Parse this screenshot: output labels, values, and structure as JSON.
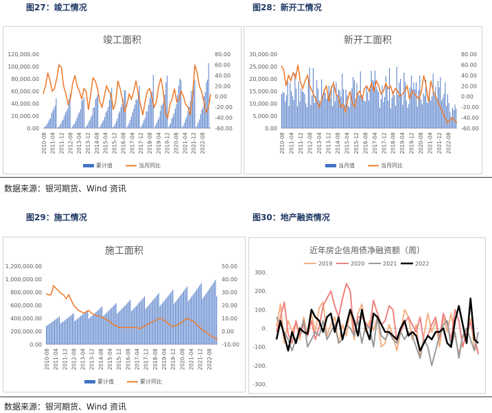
{
  "figures": {
    "f27": {
      "label": "图27：竣工情况"
    },
    "f28": {
      "label": "图28：新开工情况"
    },
    "f29": {
      "label": "图29：施工情况"
    },
    "f30": {
      "label": "图30：地产融资情况"
    }
  },
  "source_text": "数据来源：银河期货、Wind 资讯",
  "colors": {
    "bar": "#4472c4",
    "line": "#ed7d31",
    "title_blue": "#1f3864"
  },
  "chart_data": [
    {
      "id": "completion",
      "type": "bar+line",
      "title": "竣工面积",
      "x_ticks": [
        "2010-08",
        "2011-04",
        "2011-12",
        "2012-08",
        "2013-04",
        "2013-12",
        "2014-08",
        "2015-04",
        "2015-12",
        "2016-08",
        "2017-04",
        "2017-12",
        "2018-08",
        "2019-04",
        "2019-12",
        "2020-08",
        "2021-04",
        "2021-12",
        "2022-08"
      ],
      "y_left_ticks": [
        "0.00",
        "20,000.00",
        "40,000.00",
        "60,000.00",
        "80,000.00",
        "100,000.00",
        "120,000.00"
      ],
      "y_right_ticks": [
        "80.00",
        "60.00",
        "40.00",
        "20.00",
        "0.00",
        "-20.00",
        "-40.00",
        "-60.00"
      ],
      "ylim_left": [
        0,
        120000
      ],
      "ylim_right": [
        -60,
        80
      ],
      "right_tick_values": [
        80,
        60,
        40,
        20,
        0,
        -20,
        -40,
        -60
      ],
      "legend": [
        "累计值",
        "当月同比"
      ],
      "bar_pattern": "cumulative",
      "bar_annual_peak_start": 42000,
      "bar_annual_peak_end": 98000,
      "line_values": [
        5,
        20,
        45,
        30,
        10,
        15,
        35,
        60,
        55,
        20,
        5,
        -15,
        -5,
        25,
        40,
        20,
        10,
        -5,
        15,
        10,
        -25,
        5,
        35,
        30,
        15,
        -10,
        -20,
        0,
        20,
        10,
        5,
        -25,
        -10,
        30,
        15,
        -5,
        -30,
        -15,
        5,
        -5,
        10,
        30,
        5,
        -15,
        -35,
        -10,
        10,
        15,
        0,
        -20,
        -10,
        20,
        35,
        10,
        -30,
        -40,
        -15,
        -5,
        15,
        -10,
        -5,
        10,
        0,
        -15,
        -20,
        -35,
        0,
        60,
        45,
        20,
        10,
        -10,
        -30,
        -20,
        5
      ]
    },
    {
      "id": "new-starts",
      "type": "bar+line",
      "title": "新开工面积",
      "x_ticks": [
        "2010-08",
        "2011-04",
        "2011-12",
        "2012-08",
        "2013-04",
        "2013-12",
        "2014-08",
        "2015-04",
        "2015-12",
        "2016-08",
        "2017-04",
        "2017-12",
        "2018-08",
        "2019-04",
        "2019-12",
        "2020-08",
        "2021-04",
        "2021-12",
        "2022-08"
      ],
      "y_left_ticks": [
        "0.00",
        "5,000.00",
        "10,000.00",
        "15,000.00",
        "20,000.00",
        "25,000.00",
        "30,000.00"
      ],
      "y_right_ticks": [
        "80.00",
        "60.00",
        "40.00",
        "20.00",
        "0.00",
        "-20.00",
        "-40.00",
        "-60.00"
      ],
      "ylim_left": [
        0,
        30000
      ],
      "ylim_right": [
        -60,
        80
      ],
      "right_tick_values": [
        80,
        60,
        40,
        20,
        0,
        -20,
        -40,
        -60
      ],
      "legend": [
        "当月值",
        "当月同比"
      ],
      "bar_pattern": "monthly",
      "line_values": [
        58,
        50,
        20,
        40,
        30,
        45,
        35,
        60,
        28,
        15,
        30,
        40,
        20,
        10,
        0,
        -10,
        -20,
        -5,
        10,
        20,
        -10,
        15,
        25,
        5,
        0,
        -20,
        -15,
        -30,
        -5,
        10,
        -15,
        -20,
        5,
        10,
        -5,
        15,
        20,
        10,
        25,
        10,
        30,
        20,
        5,
        10,
        25,
        15,
        20,
        5,
        15,
        10,
        0,
        5,
        10,
        20,
        -5,
        10,
        5,
        0,
        -5,
        10,
        40,
        20,
        -10,
        30,
        10,
        0,
        -10,
        -20,
        -30,
        -40,
        -50,
        -45,
        -40,
        -45,
        -50
      ]
    },
    {
      "id": "under-construction",
      "type": "bar+line",
      "title": "施工面积",
      "x_ticks": [
        "2010-08",
        "2011-04",
        "2011-12",
        "2012-08",
        "2013-04",
        "2013-12",
        "2014-08",
        "2015-04",
        "2015-12",
        "2016-08",
        "2017-04",
        "2017-12",
        "2018-08",
        "2019-04",
        "2019-12",
        "2020-08",
        "2021-04",
        "2021-12",
        "2022-08"
      ],
      "y_left_ticks": [
        "0.00",
        "200,000.00",
        "400,000.00",
        "600,000.00",
        "800,000.00",
        "1,000,000.00",
        "1,200,000.00"
      ],
      "y_right_ticks": [
        "50.00",
        "40.00",
        "30.00",
        "20.00",
        "10.00",
        "0.00",
        "-10.00"
      ],
      "ylim_left": [
        0,
        1200000
      ],
      "ylim_right": [
        -10,
        50
      ],
      "right_tick_values": [
        50,
        40,
        30,
        20,
        10,
        0,
        -10
      ],
      "legend": [
        "累计值",
        "累计同比"
      ],
      "bar_pattern": "cumulative-growing",
      "bar_start_max": 380000,
      "bar_end_max": 1000000,
      "line_values": [
        29,
        28,
        28,
        35,
        33,
        31,
        29,
        28,
        25,
        28,
        24,
        20,
        18,
        16,
        15,
        14,
        15,
        16,
        14,
        13,
        12,
        12,
        11,
        10,
        9,
        8,
        6,
        5,
        4,
        3,
        3,
        3,
        3,
        3,
        3,
        3,
        3,
        2,
        3,
        4,
        5,
        6,
        7,
        8,
        9,
        10,
        10,
        8,
        7,
        5,
        4,
        4,
        5,
        6,
        7,
        9,
        10,
        9,
        8,
        7,
        5,
        3,
        1,
        0,
        -1,
        -3,
        -4,
        -5,
        -6
      ]
    },
    {
      "id": "financing",
      "type": "line",
      "title": "近年房企信用债净融资额（周）",
      "y_ticks": [
        "300.",
        "200.",
        "100.",
        "0.",
        "-100.",
        "-200.",
        "-300."
      ],
      "ylim": [
        -300,
        300
      ],
      "tick_values": [
        300,
        200,
        100,
        0,
        -100,
        -200,
        -300
      ],
      "series": [
        {
          "name": "2019",
          "color": "#f4b183",
          "width": 2,
          "values": [
            10,
            130,
            -80,
            40,
            -20,
            30,
            -60,
            60,
            -40,
            80,
            -20,
            110,
            140,
            -40,
            20,
            60,
            -80,
            20,
            -40,
            100,
            -60,
            80,
            130,
            -20,
            40,
            -10,
            60,
            -100,
            -80,
            20,
            -40,
            -120,
            -20,
            100,
            60,
            -60,
            20,
            -160,
            -40,
            80,
            -20,
            40,
            -100,
            60,
            -20,
            80,
            -40,
            -140,
            -40,
            -60,
            50,
            -100,
            -120
          ]
        },
        {
          "name": "2020",
          "color": "#f08080",
          "width": 2,
          "values": [
            -20,
            60,
            140,
            -30,
            -80,
            40,
            -40,
            20,
            -40,
            40,
            -60,
            10,
            120,
            160,
            200,
            120,
            60,
            160,
            240,
            200,
            -40,
            60,
            60,
            30,
            0,
            150,
            80,
            20,
            40,
            120,
            100,
            -70,
            -20,
            30,
            60,
            20,
            -20,
            60,
            -80,
            -40,
            20,
            60,
            -60,
            80,
            20,
            -60,
            100,
            40,
            -100,
            -20,
            30,
            -40,
            -140
          ]
        },
        {
          "name": "2021",
          "color": "#999999",
          "width": 2,
          "values": [
            60,
            20,
            -20,
            -60,
            -120,
            -60,
            -20,
            40,
            -100,
            -60,
            -20,
            -40,
            40,
            -60,
            -20,
            20,
            -80,
            -60,
            20,
            0,
            -40,
            40,
            -80,
            20,
            0,
            -100,
            60,
            -40,
            -60,
            -20,
            -60,
            -80,
            -20,
            -60,
            -20,
            -40,
            -100,
            -160,
            -60,
            -100,
            -200,
            -120,
            -40,
            20,
            40,
            -100,
            -20,
            -160,
            -40,
            0,
            -60,
            -120,
            -20
          ]
        },
        {
          "name": "2022",
          "color": "#000000",
          "width": 2.5,
          "values": [
            -60,
            40,
            -40,
            -120,
            -20,
            -80,
            0,
            -20,
            -30,
            100,
            60,
            40,
            -20,
            60,
            80,
            -20,
            60,
            -60,
            20,
            100,
            40,
            -40,
            100,
            0,
            -60,
            80,
            60,
            20,
            -20,
            -20,
            -40,
            -60,
            0,
            40,
            -40,
            -20,
            -40,
            -120,
            -80,
            -40,
            -60,
            -20,
            -20,
            0,
            -80,
            -100,
            40,
            120,
            20,
            -80,
            160,
            -60,
            -80
          ]
        }
      ]
    }
  ]
}
